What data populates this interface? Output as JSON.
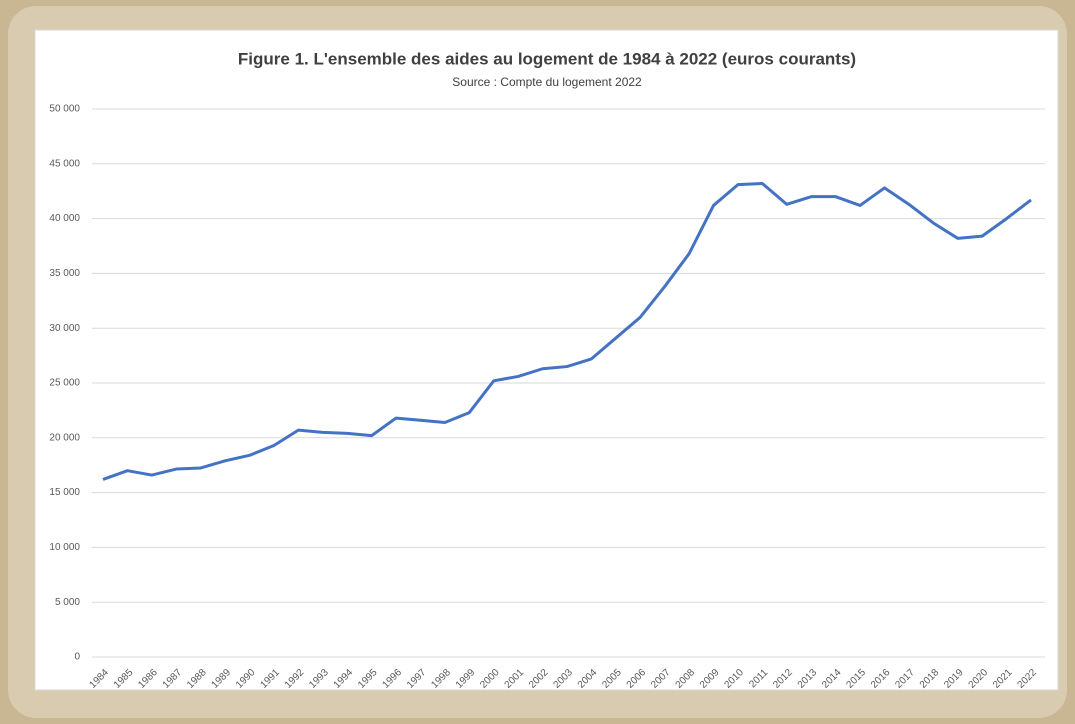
{
  "chart_data": {
    "type": "line",
    "title": "Figure 1. L'ensemble des aides au logement de 1984 à 2022 (euros courants)",
    "subtitle": "Source : Compte du logement 2022",
    "categories": [
      "1984",
      "1985",
      "1986",
      "1987",
      "1988",
      "1989",
      "1990",
      "1991",
      "1992",
      "1993",
      "1994",
      "1995",
      "1996",
      "1997",
      "1998",
      "1999",
      "2000",
      "2001",
      "2002",
      "2003",
      "2004",
      "2005",
      "2006",
      "2007",
      "2008",
      "2009",
      "2010",
      "2011",
      "2012",
      "2013",
      "2014",
      "2015",
      "2016",
      "2017",
      "2018",
      "2019",
      "2020",
      "2021",
      "2022"
    ],
    "series": [
      {
        "name": "Aides au logement",
        "color": "#4472c4",
        "values": [
          16200,
          17000,
          16600,
          17150,
          17250,
          17900,
          18400,
          19300,
          20700,
          20500,
          20400,
          20200,
          21800,
          21600,
          21400,
          22300,
          25200,
          25600,
          26300,
          26500,
          27200,
          29100,
          31000,
          33800,
          36800,
          41200,
          43100,
          43200,
          41300,
          42000,
          42000,
          41200,
          42800,
          41300,
          39600,
          38200,
          38400,
          40000,
          41700
        ]
      }
    ],
    "ylim": [
      0,
      50000
    ],
    "yticks": [
      0,
      {
        "value": 5000,
        "label": "5 000"
      },
      {
        "value": 10000,
        "label": "10 000"
      },
      {
        "value": 15000,
        "label": "15 000"
      },
      {
        "value": 20000,
        "label": "20 000"
      },
      {
        "value": 25000,
        "label": "25 000"
      },
      {
        "value": 30000,
        "label": "30 000"
      },
      {
        "value": 35000,
        "label": "35 000"
      },
      {
        "value": 40000,
        "label": "40 000"
      },
      {
        "value": 45000,
        "label": "45 000"
      },
      {
        "value": 50000,
        "label": "50 000"
      }
    ],
    "grid": true
  }
}
